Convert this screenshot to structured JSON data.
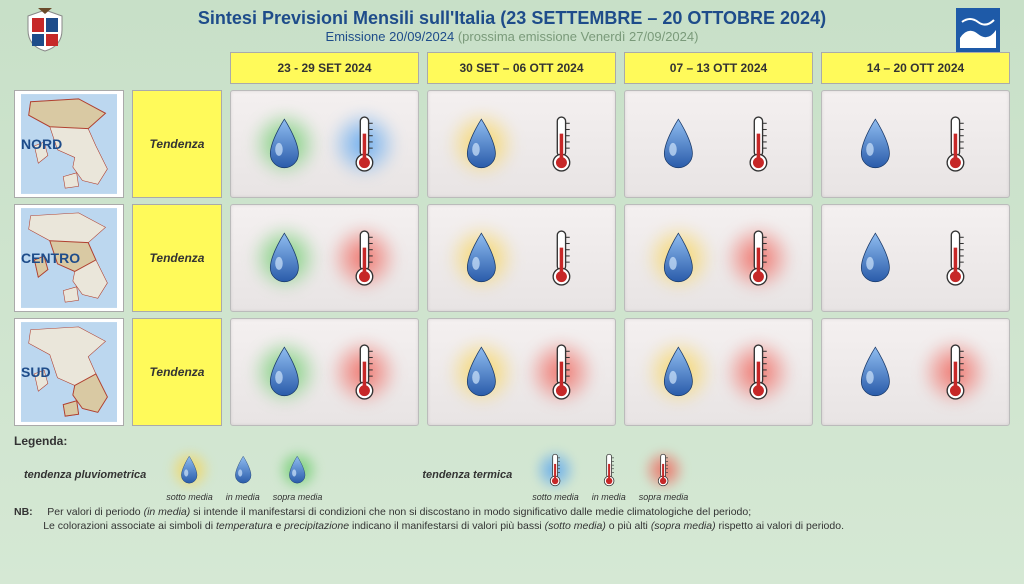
{
  "header": {
    "title": "Sintesi  Previsioni Mensili sull'Italia (23 SETTEMBRE – 20 OTTOBRE 2024)",
    "emission_label": "Emissione 20/09/2024",
    "next_emission": " (prossima emissione Venerdì 27/09/2024)"
  },
  "columns": [
    "23 - 29 SET 2024",
    "30 SET – 06 OTT  2024",
    "07 – 13 OTT  2024",
    "14 – 20 OTT  2024"
  ],
  "regions": [
    {
      "name": "NORD",
      "color": "#1e4c8a",
      "tendenza": "Tendenza"
    },
    {
      "name": "CENTRO",
      "color": "#1e4c8a",
      "tendenza": "Tendenza"
    },
    {
      "name": "SUD",
      "color": "#1e4c8a",
      "tendenza": "Tendenza"
    }
  ],
  "glow_colors": {
    "green": "#5ac85a",
    "blue": "#50a0f0",
    "yellow": "#fad246",
    "red": "#f05a50",
    "none": null
  },
  "forecast": [
    [
      {
        "p": "green",
        "t": "blue"
      },
      {
        "p": "yellow",
        "t": "none"
      },
      {
        "p": "none",
        "t": "none"
      },
      {
        "p": "none",
        "t": "none"
      }
    ],
    [
      {
        "p": "green",
        "t": "red"
      },
      {
        "p": "yellow",
        "t": "none"
      },
      {
        "p": "yellow",
        "t": "red"
      },
      {
        "p": "none",
        "t": "none"
      }
    ],
    [
      {
        "p": "green",
        "t": "red"
      },
      {
        "p": "yellow",
        "t": "red"
      },
      {
        "p": "yellow",
        "t": "red"
      },
      {
        "p": "none",
        "t": "red"
      }
    ]
  ],
  "legend": {
    "title": "Legenda:",
    "precip_label": "tendenza pluviometrica",
    "therm_label": "tendenza termica",
    "precip_items": [
      {
        "glow": "yellow",
        "label": "sotto media"
      },
      {
        "glow": "none",
        "label": "in media"
      },
      {
        "glow": "green",
        "label": "sopra media"
      }
    ],
    "therm_items": [
      {
        "glow": "blue",
        "label": "sotto media"
      },
      {
        "glow": "none",
        "label": "in media"
      },
      {
        "glow": "red",
        "label": "sopra media"
      }
    ]
  },
  "notes": {
    "nb": "NB:",
    "line1_a": "Per valori di periodo ",
    "line1_b": "(in media)",
    "line1_c": " si intende il manifestarsi di condizioni che non  si discostano in modo  significativo dalle medie climatologiche del periodo;",
    "line2_a": "Le colorazioni associate ai simboli di ",
    "line2_b": "temperatura",
    "line2_c": " e ",
    "line2_d": "precipitazione",
    "line2_e": " indicano il manifestarsi di valori più bassi ",
    "line2_f": "(sotto media)",
    "line2_g": " o più alti ",
    "line2_h": "(sopra media)",
    "line2_i": " rispetto ai valori di periodo."
  },
  "style": {
    "bg_page": "#d5e8d4",
    "bg_header_cell": "#fffa5a",
    "bg_forecast_cell": "#eee9e9",
    "title_color": "#1e4c8a",
    "grid_cols": 6,
    "grid_rows": 4
  }
}
